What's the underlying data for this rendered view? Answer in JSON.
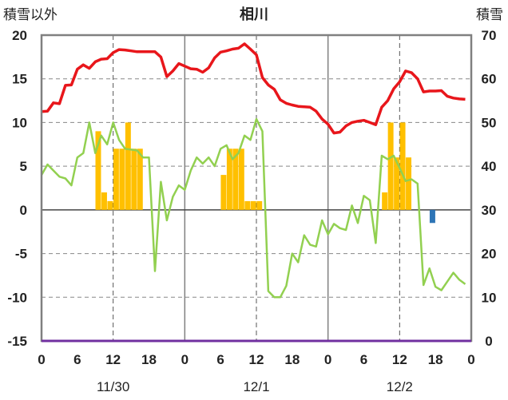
{
  "chart_data": {
    "type": "bar+line",
    "title": "相川",
    "ylabel_left": "積雪以外",
    "ylabel_right": "積雪",
    "ylim_left": [
      -15,
      20
    ],
    "ylim_right": [
      0,
      70
    ],
    "yticks_left": [
      "20",
      "15",
      "10",
      "5",
      "0",
      "-5",
      "-10",
      "-15"
    ],
    "yticks_right": [
      "70",
      "60",
      "50",
      "40",
      "30",
      "20",
      "10",
      "0"
    ],
    "xticks": [
      "0",
      "6",
      "12",
      "18",
      "0",
      "6",
      "12",
      "18",
      "0",
      "6",
      "12",
      "18",
      "0"
    ],
    "dates": [
      "11/30",
      "12/1",
      "12/2"
    ],
    "x_range_hours": [
      0,
      72
    ],
    "grid": "dashed vertical at 12h, solid vertical at day boundaries, dashed horizontal",
    "colors": {
      "snow_depth": "#e8161b",
      "temperature": "#92d050",
      "precip": "#ffc000",
      "negative_bar": "#2e75b6",
      "baseline": "#7030a0",
      "grid": "#888888",
      "frame": "#808080"
    },
    "series": [
      {
        "name": "",
        "axis": "right",
        "kind": "line",
        "x": [
          0,
          1,
          2,
          3,
          4,
          5,
          6,
          7,
          8,
          9,
          10,
          11,
          12,
          13,
          14,
          15,
          16,
          17,
          18,
          19,
          20,
          21,
          22,
          23,
          24,
          25,
          26,
          27,
          28,
          29,
          30,
          31,
          32,
          33,
          34,
          35,
          36,
          37,
          38,
          39,
          40,
          41,
          42,
          43,
          44,
          45,
          46,
          47,
          48,
          49,
          50,
          51,
          52,
          53,
          54,
          55,
          56,
          57,
          58,
          59,
          60,
          61,
          62,
          63,
          64,
          65,
          66,
          67,
          68,
          69,
          70,
          71
        ],
        "y": [
          52.5,
          52.6,
          54.5,
          54.3,
          58.5,
          58.6,
          62.2,
          63.2,
          62.4,
          63.9,
          64.5,
          64.6,
          66.0,
          66.7,
          66.6,
          66.4,
          66.2,
          66.2,
          66.2,
          66.2,
          65.0,
          60.5,
          61.8,
          63.5,
          62.9,
          62.3,
          62.2,
          61.5,
          62.5,
          64.8,
          66.1,
          66.4,
          66.8,
          67.0,
          68.0,
          66.8,
          65.5,
          60.3,
          58.6,
          57.6,
          55.2,
          54.4,
          54.0,
          53.7,
          53.6,
          53.5,
          52.6,
          50.8,
          49.6,
          47.6,
          47.8,
          49.2,
          50.0,
          50.3,
          50.5,
          50.0,
          49.5,
          53.5,
          55.0,
          57.7,
          59.3,
          61.8,
          61.4,
          60.0,
          57.0,
          57.2,
          57.2,
          57.3,
          56.0,
          55.6,
          55.4,
          55.3
        ]
      },
      {
        "name": "",
        "axis": "left",
        "kind": "line",
        "x": [
          0,
          1,
          2,
          3,
          4,
          5,
          6,
          7,
          8,
          9,
          10,
          11,
          12,
          13,
          14,
          15,
          16,
          17,
          18,
          19,
          20,
          21,
          22,
          23,
          24,
          25,
          26,
          27,
          28,
          29,
          30,
          31,
          32,
          33,
          34,
          35,
          36,
          37,
          38,
          39,
          40,
          41,
          42,
          43,
          44,
          45,
          46,
          47,
          48,
          49,
          50,
          51,
          52,
          53,
          54,
          55,
          56,
          57,
          58,
          59,
          60,
          61,
          62,
          63,
          64,
          65,
          66,
          67,
          68,
          69,
          70,
          71
        ],
        "y": [
          4.0,
          5.2,
          4.5,
          3.8,
          3.6,
          2.8,
          6.0,
          6.5,
          10.0,
          6.5,
          8.5,
          7.5,
          10.0,
          8.0,
          7.0,
          6.9,
          6.8,
          6.0,
          6.0,
          -7.0,
          3.2,
          -1.2,
          1.5,
          2.8,
          2.3,
          4.5,
          6.0,
          5.3,
          6.0,
          5.0,
          7.0,
          7.4,
          5.8,
          6.5,
          8.5,
          8.0,
          10.4,
          9.0,
          -9.3,
          -10.0,
          -10.0,
          -8.7,
          -5.0,
          -6.0,
          -2.9,
          -4.0,
          -4.2,
          -1.2,
          -2.8,
          -1.6,
          -2.1,
          -2.3,
          0.5,
          -1.5,
          1.6,
          1.1,
          -3.8,
          6.2,
          5.8,
          6.2,
          4.8,
          3.3,
          3.5,
          3.0,
          -8.6,
          -6.7,
          -8.8,
          -9.2,
          -8.2,
          -7.2,
          -8.0,
          -8.5
        ]
      },
      {
        "name": "",
        "axis": "left",
        "kind": "bar",
        "x": [
          9.5,
          10.5,
          11.5,
          12.5,
          13.5,
          14.5,
          15.5,
          16.5,
          30.5,
          31.5,
          32.5,
          33.5,
          34.5,
          35.5,
          36.5,
          57.5,
          58.5,
          59.5,
          60.5,
          61.5,
          62.5,
          63.5,
          64.5
        ],
        "y": [
          9,
          2,
          1,
          7,
          7,
          10,
          7,
          7,
          4,
          7,
          7,
          7,
          1,
          1,
          1,
          2,
          10,
          6,
          10,
          6,
          0,
          0,
          0
        ]
      },
      {
        "name": "",
        "axis": "left",
        "kind": "bar",
        "x": [
          65.5
        ],
        "y": [
          -1.5
        ]
      }
    ]
  }
}
